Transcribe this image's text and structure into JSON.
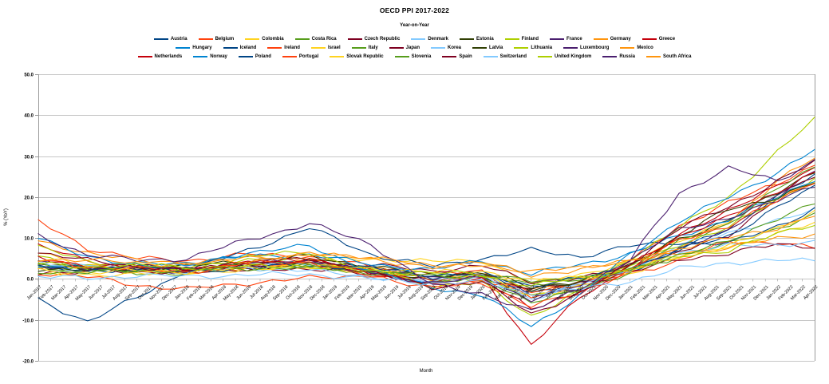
{
  "chart": {
    "title": "OECD PPI 2017-2022",
    "subtitle": "Year-on-Year"
  },
  "chart_data": {
    "type": "line",
    "title": "OECD PPI 2017-2022",
    "subtitle": "Year-on-Year",
    "xlabel": "Month",
    "ylabel": "% (YoY)",
    "ylim": [
      -20,
      50
    ],
    "y_tick_step": 10,
    "y_tick_labels": [
      "50.0",
      "40.0",
      "30.0",
      "20.0",
      "10.0",
      "0.0",
      "-10.0",
      "-20.0"
    ],
    "grid": true,
    "legend_position": "top",
    "legend_per_row": 11,
    "x": [
      "Jan-2017",
      "Feb-2017",
      "Mar-2017",
      "Apr-2017",
      "May-2017",
      "Jun-2017",
      "Jul-2017",
      "Aug-2017",
      "Sep-2017",
      "Oct-2017",
      "Nov-2017",
      "Dec-2017",
      "Jan-2018",
      "Feb-2018",
      "Mar-2018",
      "Apr-2018",
      "May-2018",
      "Jun-2018",
      "Jul-2018",
      "Aug-2018",
      "Sep-2018",
      "Oct-2018",
      "Nov-2018",
      "Dec-2018",
      "Jan-2019",
      "Feb-2019",
      "Mar-2019",
      "Apr-2019",
      "May-2019",
      "Jun-2019",
      "Jul-2019",
      "Aug-2019",
      "Sep-2019",
      "Oct-2019",
      "Nov-2019",
      "Dec-2019",
      "Jan-2020",
      "Feb-2020",
      "Mar-2020",
      "Apr-2020",
      "May-2020",
      "Jun-2020",
      "Jul-2020",
      "Aug-2020",
      "Sep-2020",
      "Oct-2020",
      "Nov-2020",
      "Dec-2020",
      "Jan-2021",
      "Feb-2021",
      "Mar-2021",
      "Apr-2021",
      "May-2021",
      "Jun-2021",
      "Jul-2021",
      "Aug-2021",
      "Sep-2021",
      "Oct-2021",
      "Nov-2021",
      "Dec-2021",
      "Jan-2022",
      "Feb-2022",
      "Mar-2022",
      "Apr-2022"
    ],
    "key_month_indices": [
      0,
      4,
      8,
      12,
      17,
      22,
      27,
      32,
      36,
      40,
      44,
      48,
      52,
      56,
      60,
      63
    ],
    "series": [
      {
        "name": "Austria",
        "color": "#004586",
        "values": [
          2.5,
          2.0,
          2.6,
          2.2,
          3.6,
          4.0,
          2.6,
          0.6,
          1.0,
          -3.2,
          -1.2,
          2.0,
          7.0,
          12.5,
          20.0,
          25.5
        ]
      },
      {
        "name": "Belgium",
        "color": "#FF420E",
        "values": [
          14.0,
          7.5,
          5.0,
          4.5,
          6.0,
          5.5,
          3.0,
          1.2,
          1.8,
          -4.5,
          -1.0,
          4.5,
          12.5,
          19.0,
          23.0,
          28.0
        ]
      },
      {
        "name": "Colombia",
        "color": "#FFD320",
        "values": [
          6.5,
          3.5,
          2.0,
          1.6,
          3.0,
          4.5,
          5.0,
          4.2,
          4.6,
          -1.2,
          1.2,
          4.0,
          9.5,
          14.0,
          20.0,
          24.0
        ]
      },
      {
        "name": "Costa Rica",
        "color": "#579D1C",
        "values": [
          3.0,
          2.2,
          1.6,
          1.2,
          2.6,
          3.0,
          1.6,
          0.6,
          1.0,
          -1.6,
          0.6,
          2.2,
          5.5,
          8.5,
          12.5,
          15.5
        ]
      },
      {
        "name": "Czech Republic",
        "color": "#7E0021",
        "values": [
          3.2,
          2.6,
          1.8,
          1.4,
          2.6,
          3.6,
          3.4,
          2.0,
          3.2,
          -0.6,
          0.2,
          2.2,
          6.5,
          10.5,
          20.0,
          25.0
        ]
      },
      {
        "name": "Denmark",
        "color": "#83CAFF",
        "values": [
          4.0,
          3.0,
          2.4,
          2.0,
          3.4,
          4.0,
          1.6,
          -0.4,
          0.6,
          -4.0,
          -2.0,
          2.6,
          8.0,
          11.5,
          14.0,
          17.0
        ]
      },
      {
        "name": "Estonia",
        "color": "#314004",
        "values": [
          3.6,
          2.6,
          3.0,
          2.6,
          3.2,
          4.6,
          2.2,
          0.2,
          0.6,
          -2.6,
          -1.0,
          3.0,
          9.5,
          14.5,
          21.0,
          26.5
        ]
      },
      {
        "name": "Finland",
        "color": "#AECF00",
        "values": [
          5.5,
          3.2,
          2.6,
          2.2,
          4.6,
          5.0,
          2.2,
          -0.4,
          0.2,
          -4.4,
          -2.4,
          3.0,
          8.5,
          12.5,
          19.5,
          24.5
        ]
      },
      {
        "name": "France",
        "color": "#4B1F6F",
        "values": [
          3.6,
          2.2,
          2.4,
          1.6,
          3.0,
          3.6,
          2.2,
          0.2,
          0.6,
          -4.0,
          -2.2,
          2.4,
          7.5,
          11.5,
          21.0,
          26.0
        ]
      },
      {
        "name": "Germany",
        "color": "#FF950E",
        "values": [
          3.0,
          2.8,
          3.0,
          2.2,
          3.0,
          3.6,
          2.6,
          -0.2,
          0.6,
          -2.2,
          -1.0,
          2.4,
          7.5,
          14.0,
          24.0,
          29.5
        ]
      },
      {
        "name": "Greece",
        "color": "#C5000B",
        "values": [
          8.0,
          4.5,
          3.0,
          1.6,
          4.0,
          5.0,
          2.0,
          -0.8,
          0.6,
          -16.0,
          -4.5,
          2.4,
          10.5,
          17.0,
          22.5,
          27.0
        ]
      },
      {
        "name": "Hungary",
        "color": "#0084D1",
        "values": [
          3.0,
          2.2,
          3.6,
          4.0,
          5.5,
          6.0,
          3.6,
          2.2,
          4.6,
          1.2,
          3.6,
          6.0,
          10.5,
          14.5,
          20.0,
          24.5
        ]
      },
      {
        "name": "Iceland",
        "color": "#004586",
        "values": [
          -5.0,
          -10.5,
          -4.5,
          2.0,
          7.0,
          12.5,
          6.0,
          3.0,
          5.0,
          7.0,
          5.5,
          8.0,
          9.0,
          8.5,
          13.0,
          17.0
        ]
      },
      {
        "name": "Ireland",
        "color": "#FF420E",
        "values": [
          1.5,
          0.5,
          -1.5,
          -2.5,
          -1.0,
          0.2,
          1.0,
          -1.5,
          -0.5,
          -3.0,
          -1.2,
          1.2,
          4.5,
          9.0,
          9.0,
          7.5
        ]
      },
      {
        "name": "Israel",
        "color": "#FFD320",
        "values": [
          1.2,
          0.6,
          1.6,
          1.2,
          2.6,
          3.0,
          1.6,
          0.2,
          0.6,
          -4.0,
          -2.0,
          1.6,
          5.5,
          8.0,
          11.0,
          13.5
        ]
      },
      {
        "name": "Italy",
        "color": "#579D1C",
        "values": [
          3.6,
          2.6,
          2.0,
          1.8,
          3.6,
          4.0,
          1.6,
          -1.0,
          0.2,
          -5.5,
          -3.0,
          1.8,
          9.0,
          13.5,
          22.0,
          27.5
        ]
      },
      {
        "name": "Japan",
        "color": "#7E0021",
        "values": [
          1.0,
          2.2,
          3.0,
          2.6,
          2.8,
          2.4,
          1.2,
          -0.4,
          1.6,
          -2.6,
          -1.0,
          1.6,
          4.8,
          6.2,
          8.5,
          8.0
        ]
      },
      {
        "name": "Korea",
        "color": "#83CAFF",
        "values": [
          4.0,
          3.4,
          3.0,
          1.6,
          2.8,
          2.0,
          0.6,
          -0.8,
          1.0,
          -5.5,
          -0.6,
          1.8,
          6.5,
          8.0,
          8.5,
          9.0
        ]
      },
      {
        "name": "Latvia",
        "color": "#314004",
        "values": [
          2.6,
          2.0,
          2.6,
          3.0,
          4.6,
          5.5,
          3.0,
          1.0,
          1.6,
          -2.0,
          -0.6,
          3.2,
          10.5,
          17.0,
          20.0,
          23.5
        ]
      },
      {
        "name": "Lithuania",
        "color": "#AECF00",
        "values": [
          8.0,
          4.0,
          3.6,
          2.6,
          5.5,
          6.5,
          2.0,
          -1.6,
          -1.0,
          -9.0,
          -3.0,
          5.0,
          12.5,
          20.0,
          31.0,
          39.0
        ]
      },
      {
        "name": "Luxembourg",
        "color": "#4B1F6F",
        "values": [
          4.5,
          2.6,
          2.8,
          2.6,
          4.0,
          4.5,
          1.6,
          -1.0,
          0.2,
          -5.0,
          -1.6,
          4.5,
          12.0,
          15.0,
          19.0,
          23.0
        ]
      },
      {
        "name": "Mexico",
        "color": "#FF950E",
        "values": [
          9.0,
          6.5,
          4.5,
          4.0,
          5.0,
          6.0,
          5.0,
          2.6,
          3.6,
          1.6,
          3.0,
          4.5,
          6.5,
          7.5,
          10.0,
          11.0
        ]
      },
      {
        "name": "Netherlands",
        "color": "#C5000B",
        "values": [
          5.5,
          3.0,
          2.6,
          2.0,
          4.0,
          4.5,
          1.6,
          -1.6,
          0.2,
          -7.5,
          -3.0,
          3.2,
          10.5,
          15.0,
          21.5,
          26.0
        ]
      },
      {
        "name": "Norway",
        "color": "#0084D1",
        "values": [
          10.5,
          5.0,
          3.6,
          3.0,
          6.5,
          8.0,
          2.0,
          -2.0,
          -4.0,
          -11.5,
          -4.0,
          6.0,
          14.0,
          20.0,
          26.0,
          31.5
        ]
      },
      {
        "name": "Poland",
        "color": "#004586",
        "values": [
          3.0,
          2.6,
          2.8,
          1.6,
          3.0,
          3.2,
          2.6,
          1.0,
          1.2,
          -1.6,
          0.2,
          2.6,
          7.0,
          10.5,
          17.5,
          22.5
        ]
      },
      {
        "name": "Portugal",
        "color": "#FF420E",
        "values": [
          4.5,
          3.0,
          2.6,
          1.6,
          3.8,
          4.2,
          0.6,
          -2.0,
          -1.0,
          -6.5,
          -3.5,
          2.2,
          9.5,
          13.0,
          19.0,
          24.0
        ]
      },
      {
        "name": "Slovak Republic",
        "color": "#FFD320",
        "values": [
          2.0,
          1.6,
          2.0,
          1.8,
          2.6,
          3.0,
          2.6,
          1.6,
          2.0,
          -0.6,
          0.6,
          2.0,
          5.5,
          8.0,
          12.5,
          16.5
        ]
      },
      {
        "name": "Slovenia",
        "color": "#579D1C",
        "values": [
          1.8,
          1.6,
          2.0,
          2.2,
          2.6,
          2.8,
          1.6,
          0.6,
          1.0,
          -0.6,
          0.2,
          2.0,
          6.0,
          9.0,
          15.0,
          18.5
        ]
      },
      {
        "name": "Spain",
        "color": "#7E0021",
        "values": [
          6.5,
          4.5,
          3.0,
          2.0,
          4.0,
          4.8,
          1.6,
          -2.0,
          -0.6,
          -8.5,
          -3.5,
          3.6,
          12.5,
          17.5,
          24.0,
          28.5
        ]
      },
      {
        "name": "Switzerland",
        "color": "#83CAFF",
        "values": [
          0.5,
          0.2,
          0.8,
          0.6,
          1.0,
          1.2,
          0.0,
          -1.0,
          -0.8,
          -3.5,
          -2.5,
          -0.5,
          2.5,
          4.0,
          4.5,
          4.5
        ]
      },
      {
        "name": "United Kingdom",
        "color": "#AECF00",
        "values": [
          3.6,
          3.0,
          3.2,
          2.8,
          3.0,
          3.2,
          1.8,
          1.6,
          1.0,
          -1.6,
          0.2,
          2.2,
          5.5,
          7.0,
          11.0,
          13.5
        ]
      },
      {
        "name": "Russia",
        "color": "#4B1F6F",
        "values": [
          10.5,
          6.0,
          4.5,
          5.0,
          9.5,
          13.5,
          8.5,
          -1.6,
          -3.5,
          -8.0,
          -2.0,
          4.5,
          21.0,
          27.0,
          24.0,
          29.0
        ]
      },
      {
        "name": "South Africa",
        "color": "#FF950E",
        "values": [
          5.0,
          4.5,
          4.0,
          3.5,
          4.5,
          6.0,
          5.5,
          3.0,
          4.5,
          0.6,
          2.6,
          4.0,
          7.5,
          10.0,
          12.5,
          15.5
        ]
      }
    ]
  },
  "layout_colors": {
    "gridline": "#c6c6c6",
    "axis": "#9a9a9a",
    "background": "#ffffff"
  }
}
